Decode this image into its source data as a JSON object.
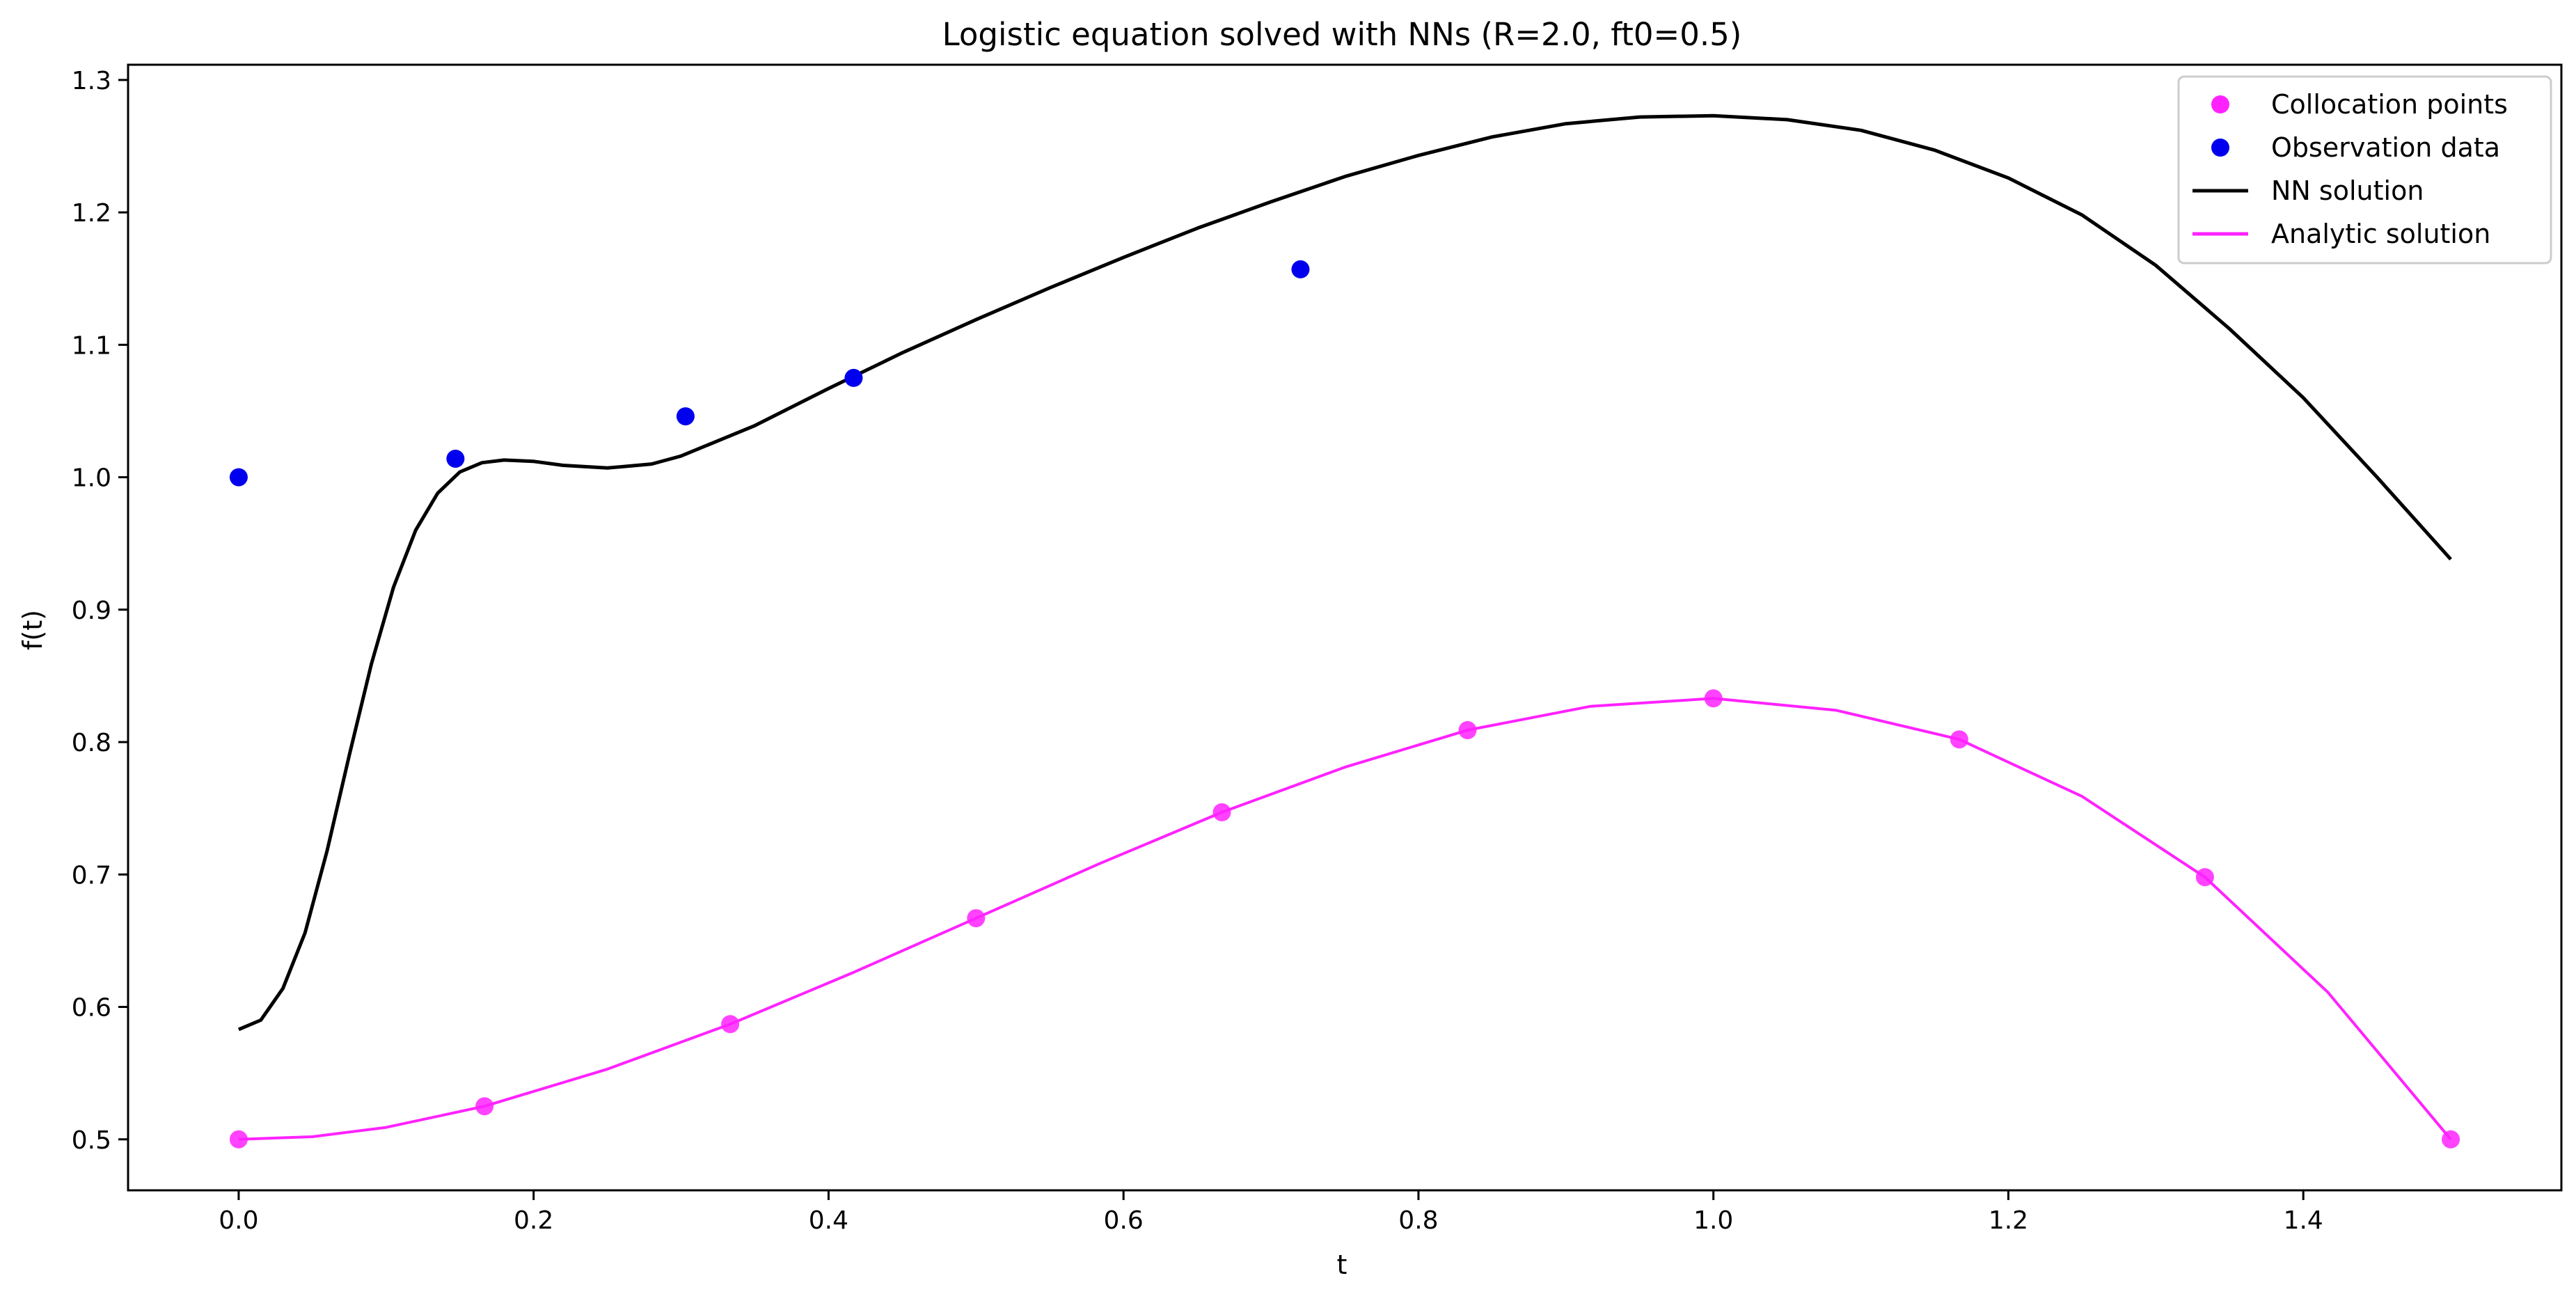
{
  "chart_data": {
    "type": "line",
    "title": "Logistic equation solved with NNs (R=2.0, ft0=0.5)",
    "xlabel": "t",
    "ylabel": "f(t)",
    "xlim": [
      -0.075,
      1.575
    ],
    "ylim": [
      0.4615,
      1.3115
    ],
    "xticks": [
      0.0,
      0.2,
      0.4,
      0.6,
      0.8,
      1.0,
      1.2,
      1.4
    ],
    "xtick_labels": [
      "0.0",
      "0.2",
      "0.4",
      "0.6",
      "0.8",
      "1.0",
      "1.2",
      "1.4"
    ],
    "yticks": [
      0.5,
      0.6,
      0.7,
      0.8,
      0.9,
      1.0,
      1.1,
      1.2,
      1.3
    ],
    "ytick_labels": [
      "0.5",
      "0.6",
      "0.7",
      "0.8",
      "0.9",
      "1.0",
      "1.1",
      "1.2",
      "1.3"
    ],
    "grid": false,
    "legend_position": "top-right",
    "series": [
      {
        "name": "Collocation points",
        "kind": "scatter",
        "color": "#ff22ff",
        "x": [
          0.0,
          0.1667,
          0.3333,
          0.5,
          0.6667,
          0.8333,
          1.0,
          1.1667,
          1.3333,
          1.5
        ],
        "y": [
          0.5,
          0.525,
          0.587,
          0.667,
          0.747,
          0.809,
          0.833,
          0.802,
          0.698,
          0.5
        ]
      },
      {
        "name": "Observation data",
        "kind": "scatter",
        "color": "#0000ee",
        "x": [
          0.0,
          0.147,
          0.303,
          0.417,
          0.72
        ],
        "y": [
          1.0,
          1.014,
          1.046,
          1.075,
          1.157
        ]
      },
      {
        "name": "NN solution",
        "kind": "line",
        "color": "#000000",
        "x": [
          0.0,
          0.015,
          0.03,
          0.045,
          0.06,
          0.075,
          0.09,
          0.105,
          0.12,
          0.135,
          0.15,
          0.165,
          0.18,
          0.2,
          0.22,
          0.25,
          0.28,
          0.3,
          0.35,
          0.4,
          0.45,
          0.5,
          0.55,
          0.6,
          0.65,
          0.7,
          0.75,
          0.8,
          0.85,
          0.9,
          0.95,
          1.0,
          1.05,
          1.1,
          1.15,
          1.2,
          1.25,
          1.3,
          1.35,
          1.4,
          1.45,
          1.5
        ],
        "y": [
          0.583,
          0.59,
          0.614,
          0.656,
          0.718,
          0.79,
          0.859,
          0.917,
          0.96,
          0.988,
          1.004,
          1.011,
          1.013,
          1.012,
          1.009,
          1.007,
          1.01,
          1.016,
          1.039,
          1.067,
          1.094,
          1.119,
          1.143,
          1.166,
          1.188,
          1.208,
          1.227,
          1.243,
          1.257,
          1.267,
          1.272,
          1.273,
          1.27,
          1.262,
          1.247,
          1.226,
          1.198,
          1.16,
          1.112,
          1.06,
          1.0,
          0.938
        ]
      },
      {
        "name": "Analytic solution",
        "kind": "line",
        "color": "#ff22ff",
        "x": [
          0.0,
          0.05,
          0.1,
          0.1667,
          0.25,
          0.3333,
          0.4167,
          0.5,
          0.5833,
          0.6667,
          0.75,
          0.8333,
          0.9167,
          1.0,
          1.0833,
          1.1667,
          1.25,
          1.3333,
          1.4167,
          1.5
        ],
        "y": [
          0.5,
          0.502,
          0.509,
          0.525,
          0.553,
          0.587,
          0.626,
          0.667,
          0.708,
          0.747,
          0.781,
          0.809,
          0.827,
          0.833,
          0.824,
          0.802,
          0.759,
          0.698,
          0.611,
          0.5
        ]
      }
    ]
  }
}
